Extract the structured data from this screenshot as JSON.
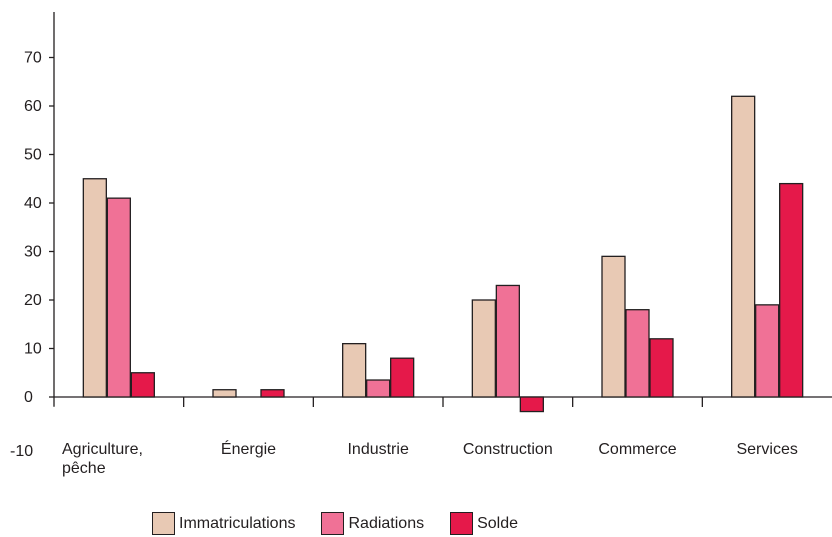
{
  "chart_data": {
    "type": "bar",
    "categories": [
      [
        "Agriculture,",
        "pêche"
      ],
      [
        "Énergie"
      ],
      [
        "Industrie"
      ],
      [
        "Construction"
      ],
      [
        "Commerce"
      ],
      [
        "Services"
      ]
    ],
    "series": [
      {
        "name": "Immatriculations",
        "color": "#e8c9b4",
        "values": [
          45,
          1.5,
          11,
          20,
          29,
          62
        ]
      },
      {
        "name": "Radiations",
        "color": "#f07196",
        "values": [
          41,
          0,
          3.5,
          23,
          18,
          19
        ]
      },
      {
        "name": "Solde",
        "color": "#e5194a",
        "values": [
          5,
          1.5,
          8,
          -3,
          12,
          44
        ]
      }
    ],
    "y_ticks": [
      "70",
      "60",
      "50",
      "40",
      "30",
      "20",
      "10",
      "0",
      "-10"
    ],
    "ylim": [
      -10,
      80
    ],
    "grid": false,
    "legend_position": "bottom"
  }
}
